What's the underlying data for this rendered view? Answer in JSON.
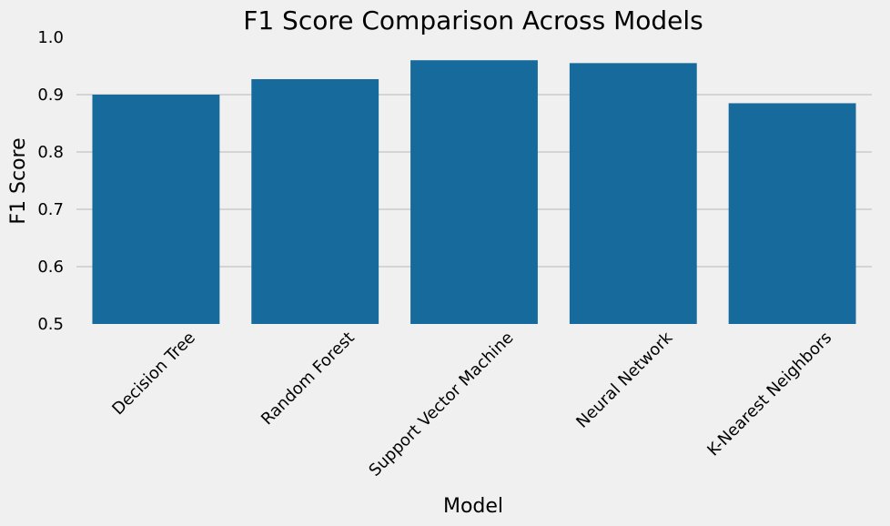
{
  "chart_data": {
    "type": "bar",
    "title": "F1 Score Comparison Across Models",
    "xlabel": "Model",
    "ylabel": "F1 Score",
    "categories": [
      "Decision Tree",
      "Random Forest",
      "Support Vector Machine",
      "Neural Network",
      "K-Nearest Neighbors"
    ],
    "values": [
      0.9,
      0.927,
      0.96,
      0.955,
      0.885
    ],
    "ylim": [
      0.5,
      1.0
    ],
    "yticks": [
      "0.5",
      "0.6",
      "0.7",
      "0.8",
      "0.9",
      "1.0"
    ],
    "grid": "horizontal",
    "bar_color": "#176b9c",
    "background_color": "#f0f0f0"
  }
}
